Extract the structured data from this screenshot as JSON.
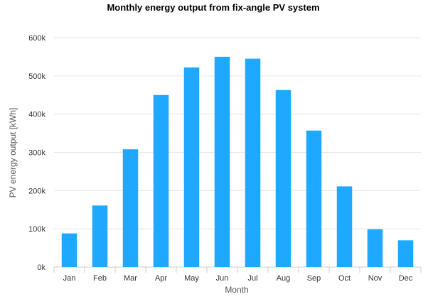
{
  "chart_data": {
    "type": "bar",
    "title": "Monthly energy output from fix-angle PV system",
    "xlabel": "Month",
    "ylabel": "PV energy output [kWh]",
    "categories": [
      "Jan",
      "Feb",
      "Mar",
      "Apr",
      "May",
      "Jun",
      "Jul",
      "Aug",
      "Sep",
      "Oct",
      "Nov",
      "Dec"
    ],
    "values": [
      88000,
      161000,
      308000,
      450000,
      522000,
      550000,
      545000,
      463000,
      357000,
      211000,
      99000,
      70000
    ],
    "ylim": [
      0,
      600000
    ],
    "yticks": [
      0,
      100000,
      200000,
      300000,
      400000,
      500000,
      600000
    ],
    "ytick_labels": [
      "0k",
      "100k",
      "200k",
      "300k",
      "400k",
      "500k",
      "600k"
    ],
    "grid": true,
    "legend": "none",
    "colors": {
      "bar": "#1fa8ff"
    }
  }
}
